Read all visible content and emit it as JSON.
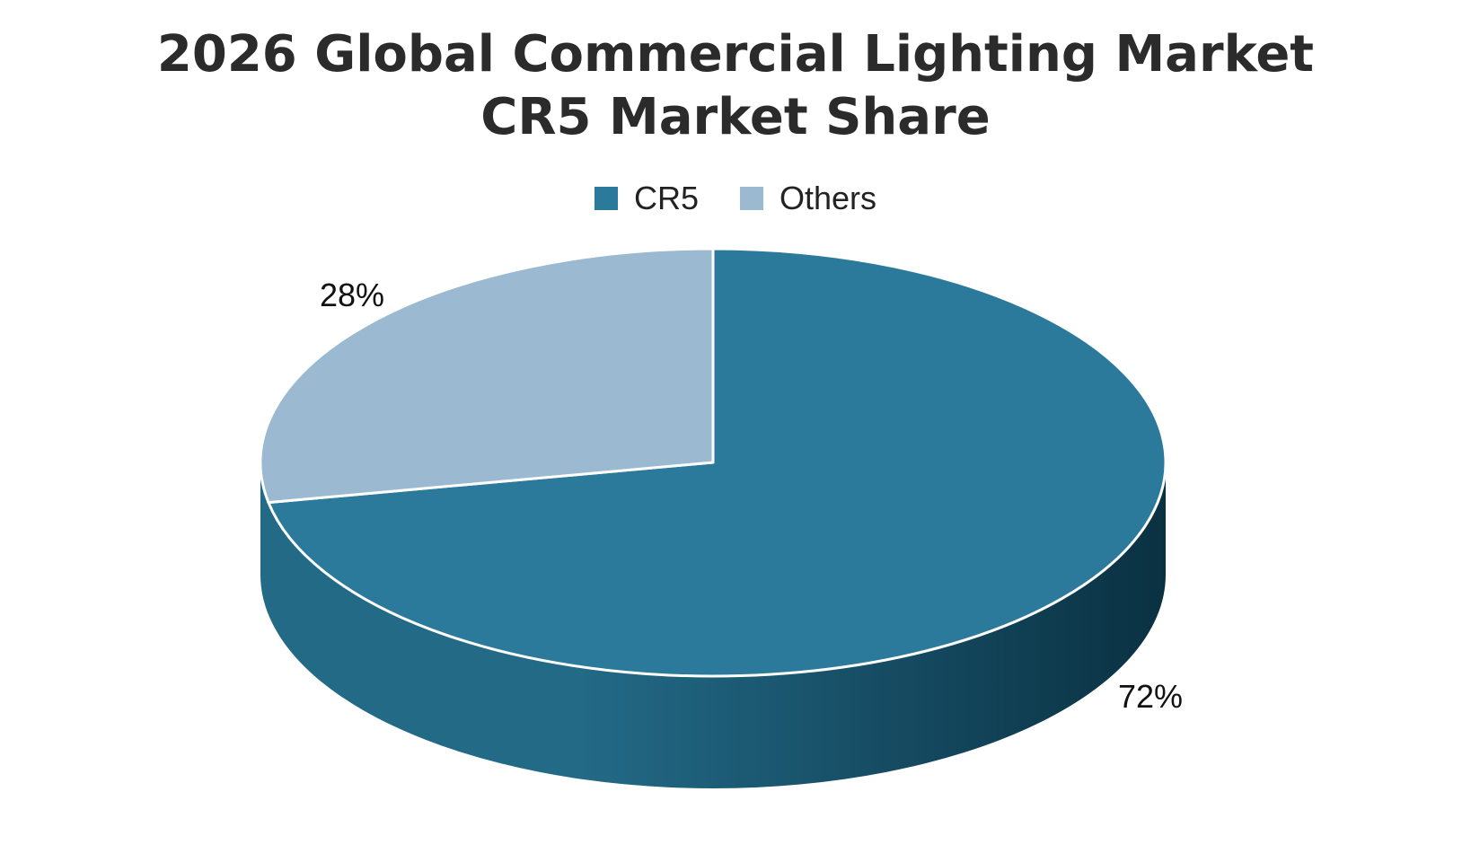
{
  "chart_data": {
    "type": "pie",
    "title_lines": [
      "2026 Global Commercial Lighting Market",
      "CR5 Market Share"
    ],
    "legend_position": "top",
    "categories": [
      "CR5",
      "Others"
    ],
    "values": [
      72,
      28
    ],
    "data_labels": [
      "72%",
      "28%"
    ],
    "colors": {
      "CR5": "#2b7a9c",
      "CR5_side_light": "#236a87",
      "CR5_side_dark": "#0a3142",
      "Others": "#9bbad2",
      "separator": "#ffffff"
    },
    "style": "3d"
  }
}
